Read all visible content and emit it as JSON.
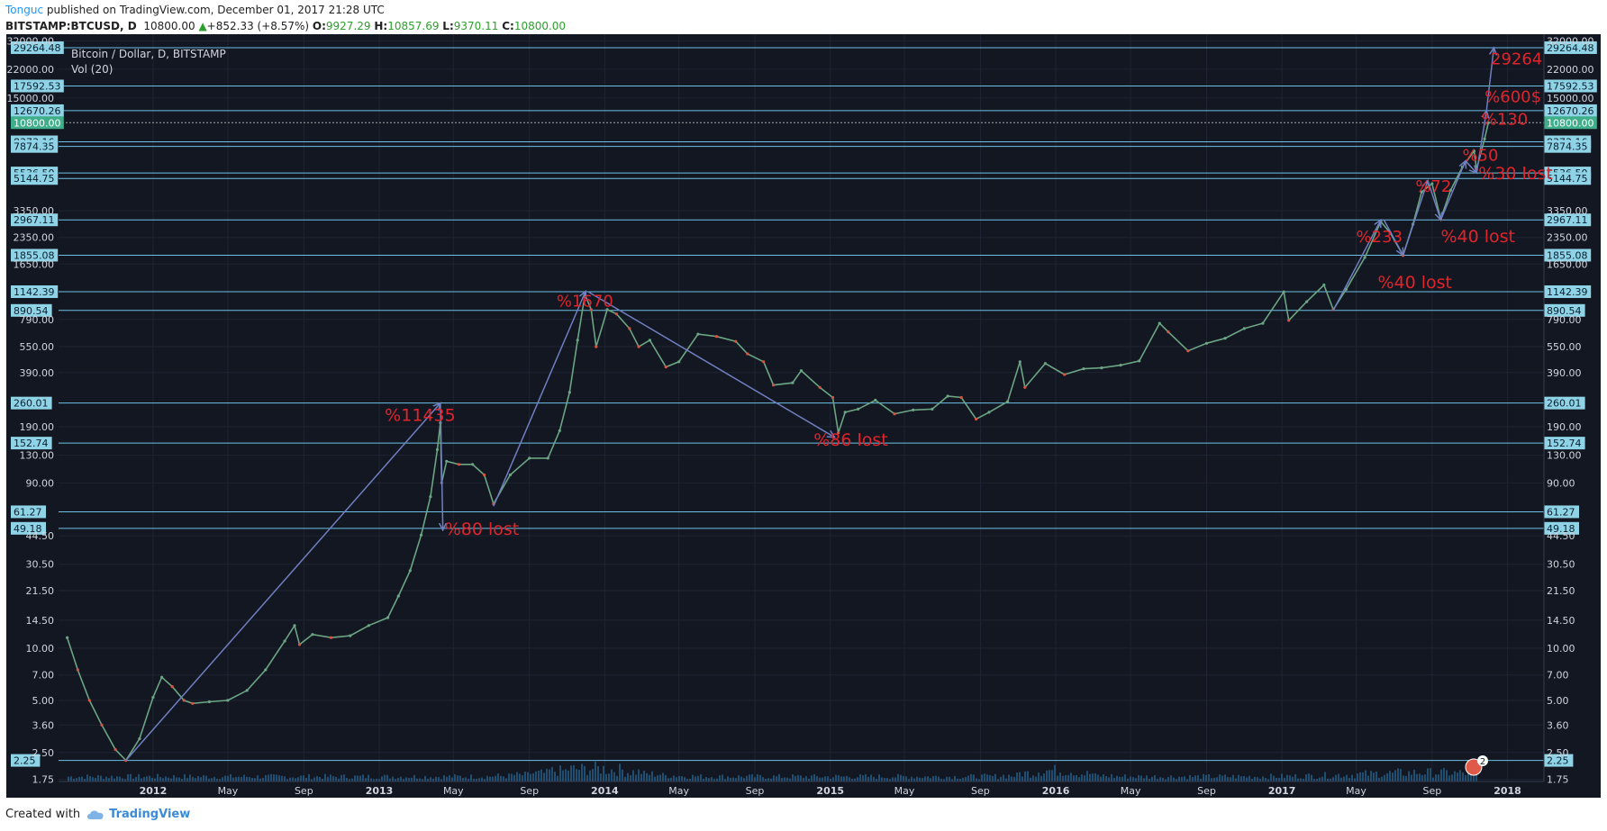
{
  "header": {
    "author": "Tonguc",
    "published": " published on TradingView.com, December 01, 2017 21:28 UTC",
    "symbol": "BITSTAMP:BTCUSD, D",
    "last": "10800.00",
    "change": "+852.33 (+8.57%)",
    "open_label": "O:",
    "open": "9927.29",
    "high_label": "H:",
    "high": "10857.69",
    "low_label": "L:",
    "low": "9370.11",
    "close_label": "C:",
    "close": "10800.00"
  },
  "footer": {
    "created_with": "Created with",
    "brand": "TradingView"
  },
  "colors": {
    "background": "#131722",
    "line": "#6ec1e4",
    "arrow": "#6f7fc0",
    "annotation": "#e0242b",
    "label_bg": "#8fd3e6",
    "price_bg": "#3fae8a",
    "candle_up": "#6ba583",
    "candle_down": "#d75442",
    "volume": "#2a7bb0"
  },
  "chart_data": {
    "type": "line",
    "title": "Bitcoin / Dollar, D, BITSTAMP",
    "subtitle": "Vol (20)",
    "y_scale": "log",
    "ylim": [
      1.7,
      35000
    ],
    "xlim": [
      "2011-08-01",
      "2018-03-01"
    ],
    "x_ticks": [
      {
        "date": "2012-01-01",
        "label": "2012"
      },
      {
        "date": "2012-05-01",
        "label": "May"
      },
      {
        "date": "2012-09-01",
        "label": "Sep"
      },
      {
        "date": "2013-01-01",
        "label": "2013"
      },
      {
        "date": "2013-05-01",
        "label": "May"
      },
      {
        "date": "2013-09-01",
        "label": "Sep"
      },
      {
        "date": "2014-01-01",
        "label": "2014"
      },
      {
        "date": "2014-05-01",
        "label": "May"
      },
      {
        "date": "2014-09-01",
        "label": "Sep"
      },
      {
        "date": "2015-01-01",
        "label": "2015"
      },
      {
        "date": "2015-05-01",
        "label": "May"
      },
      {
        "date": "2015-09-01",
        "label": "Sep"
      },
      {
        "date": "2016-01-01",
        "label": "2016"
      },
      {
        "date": "2016-05-01",
        "label": "May"
      },
      {
        "date": "2016-09-01",
        "label": "Sep"
      },
      {
        "date": "2017-01-01",
        "label": "2017"
      },
      {
        "date": "2017-05-01",
        "label": "May"
      },
      {
        "date": "2017-09-01",
        "label": "Sep"
      },
      {
        "date": "2018-01-01",
        "label": "2018"
      }
    ],
    "y_ticks": [
      "1.75",
      "2.50",
      "3.60",
      "5.00",
      "7.00",
      "10.00",
      "14.50",
      "21.50",
      "30.50",
      "44.50",
      "90.00",
      "130.00",
      "190.00",
      "390.00",
      "550.00",
      "790.00",
      "1650.00",
      "2350.00",
      "3350.00",
      "15000.00",
      "22000.00",
      "32000.00"
    ],
    "levels": [
      "29264.48",
      "17592.53",
      "12670.26",
      "8373.16",
      "7874.35",
      "5536.50",
      "5144.75",
      "2967.11",
      "1855.08",
      "1142.39",
      "890.54",
      "260.01",
      "152.74",
      "61.27",
      "49.18",
      "2.25"
    ],
    "current_price": "10800.00",
    "price_series": [
      [
        "2011-08-15",
        11.5
      ],
      [
        "2011-09-01",
        7.5
      ],
      [
        "2011-09-20",
        5.0
      ],
      [
        "2011-10-10",
        3.6
      ],
      [
        "2011-11-01",
        2.6
      ],
      [
        "2011-11-18",
        2.25
      ],
      [
        "2011-12-10",
        3.0
      ],
      [
        "2012-01-01",
        5.2
      ],
      [
        "2012-01-15",
        6.8
      ],
      [
        "2012-02-01",
        6.0
      ],
      [
        "2012-02-20",
        5.0
      ],
      [
        "2012-03-05",
        4.8
      ],
      [
        "2012-04-01",
        4.9
      ],
      [
        "2012-05-01",
        5.0
      ],
      [
        "2012-06-01",
        5.7
      ],
      [
        "2012-07-01",
        7.5
      ],
      [
        "2012-08-01",
        11.0
      ],
      [
        "2012-08-17",
        13.5
      ],
      [
        "2012-08-25",
        10.5
      ],
      [
        "2012-09-15",
        12.0
      ],
      [
        "2012-10-15",
        11.5
      ],
      [
        "2012-11-15",
        11.8
      ],
      [
        "2012-12-15",
        13.5
      ],
      [
        "2013-01-15",
        15.0
      ],
      [
        "2013-02-01",
        20.0
      ],
      [
        "2013-02-20",
        28.0
      ],
      [
        "2013-03-10",
        45.0
      ],
      [
        "2013-03-25",
        75.0
      ],
      [
        "2013-04-05",
        140.0
      ],
      [
        "2013-04-10",
        200.0
      ],
      [
        "2013-04-12",
        90.0
      ],
      [
        "2013-04-20",
        120.0
      ],
      [
        "2013-05-10",
        115.0
      ],
      [
        "2013-06-01",
        115.0
      ],
      [
        "2013-06-20",
        100.0
      ],
      [
        "2013-07-05",
        68.0
      ],
      [
        "2013-08-01",
        100.0
      ],
      [
        "2013-09-01",
        125.0
      ],
      [
        "2013-10-01",
        125.0
      ],
      [
        "2013-10-20",
        180.0
      ],
      [
        "2013-11-05",
        300.0
      ],
      [
        "2013-11-18",
        600.0
      ],
      [
        "2013-11-30",
        1100.0
      ],
      [
        "2013-12-10",
        900.0
      ],
      [
        "2013-12-18",
        550.0
      ],
      [
        "2014-01-05",
        900.0
      ],
      [
        "2014-01-20",
        850.0
      ],
      [
        "2014-02-10",
        700.0
      ],
      [
        "2014-02-25",
        550.0
      ],
      [
        "2014-03-15",
        600.0
      ],
      [
        "2014-04-10",
        420.0
      ],
      [
        "2014-05-01",
        450.0
      ],
      [
        "2014-06-01",
        650.0
      ],
      [
        "2014-07-01",
        630.0
      ],
      [
        "2014-08-01",
        590.0
      ],
      [
        "2014-08-20",
        500.0
      ],
      [
        "2014-09-15",
        450.0
      ],
      [
        "2014-10-01",
        330.0
      ],
      [
        "2014-11-01",
        340.0
      ],
      [
        "2014-11-15",
        400.0
      ],
      [
        "2014-12-15",
        320.0
      ],
      [
        "2015-01-05",
        280.0
      ],
      [
        "2015-01-14",
        175.0
      ],
      [
        "2015-01-25",
        230.0
      ],
      [
        "2015-02-15",
        240.0
      ],
      [
        "2015-03-15",
        270.0
      ],
      [
        "2015-04-15",
        225.0
      ],
      [
        "2015-05-15",
        237.0
      ],
      [
        "2015-06-15",
        240.0
      ],
      [
        "2015-07-10",
        285.0
      ],
      [
        "2015-08-01",
        280.0
      ],
      [
        "2015-08-25",
        210.0
      ],
      [
        "2015-09-15",
        230.0
      ],
      [
        "2015-10-15",
        265.0
      ],
      [
        "2015-11-04",
        450.0
      ],
      [
        "2015-11-12",
        320.0
      ],
      [
        "2015-12-15",
        440.0
      ],
      [
        "2016-01-15",
        380.0
      ],
      [
        "2016-02-15",
        410.0
      ],
      [
        "2016-03-15",
        415.0
      ],
      [
        "2016-04-15",
        430.0
      ],
      [
        "2016-05-15",
        455.0
      ],
      [
        "2016-06-17",
        750.0
      ],
      [
        "2016-07-01",
        670.0
      ],
      [
        "2016-08-02",
        520.0
      ],
      [
        "2016-09-01",
        575.0
      ],
      [
        "2016-10-01",
        615.0
      ],
      [
        "2016-11-01",
        700.0
      ],
      [
        "2016-12-01",
        750.0
      ],
      [
        "2017-01-04",
        1140.0
      ],
      [
        "2017-01-12",
        780.0
      ],
      [
        "2017-02-10",
        1000.0
      ],
      [
        "2017-03-10",
        1250.0
      ],
      [
        "2017-03-25",
        900.0
      ],
      [
        "2017-04-15",
        1180.0
      ],
      [
        "2017-05-15",
        1800.0
      ],
      [
        "2017-06-10",
        2900.0
      ],
      [
        "2017-06-25",
        2500.0
      ],
      [
        "2017-07-16",
        1850.0
      ],
      [
        "2017-08-01",
        2800.0
      ],
      [
        "2017-08-15",
        4300.0
      ],
      [
        "2017-09-01",
        4800.0
      ],
      [
        "2017-09-15",
        3000.0
      ],
      [
        "2017-10-01",
        4400.0
      ],
      [
        "2017-10-20",
        6000.0
      ],
      [
        "2017-11-08",
        7400.0
      ],
      [
        "2017-11-12",
        5800.0
      ],
      [
        "2017-11-25",
        8700.0
      ],
      [
        "2017-12-01",
        10800.0
      ]
    ],
    "arrows": [
      {
        "from": [
          "2011-11-18",
          2.25
        ],
        "to": [
          "2013-04-10",
          260
        ]
      },
      {
        "from": [
          "2013-04-10",
          260
        ],
        "to": [
          "2013-04-14",
          48
        ]
      },
      {
        "from": [
          "2013-07-05",
          66
        ],
        "to": [
          "2013-12-01",
          1150
        ]
      },
      {
        "from": [
          "2013-12-05",
          1142
        ],
        "to": [
          "2015-01-08",
          165
        ]
      },
      {
        "from": [
          "2017-03-25",
          890
        ],
        "to": [
          "2017-06-10",
          2967
        ]
      },
      {
        "from": [
          "2017-06-15",
          2967
        ],
        "to": [
          "2017-07-16",
          1855
        ]
      },
      {
        "from": [
          "2017-07-16",
          1855
        ],
        "to": [
          "2017-08-25",
          5000
        ]
      },
      {
        "from": [
          "2017-08-25",
          5000
        ],
        "to": [
          "2017-09-15",
          2967
        ]
      },
      {
        "from": [
          "2017-09-15",
          2967
        ],
        "to": [
          "2017-10-25",
          6500
        ]
      },
      {
        "from": [
          "2017-10-25",
          6500
        ],
        "to": [
          "2017-11-12",
          5536
        ]
      },
      {
        "from": [
          "2017-11-12",
          5536
        ],
        "to": [
          "2017-11-28",
          12670
        ]
      },
      {
        "from": [
          "2017-11-28",
          12670
        ],
        "to": [
          "2017-12-10",
          29264
        ]
      }
    ],
    "annotations": [
      {
        "text": "%11435",
        "date": "2013-01-10",
        "price": 205
      },
      {
        "text": "%80 lost",
        "date": "2013-04-17",
        "price": 45
      },
      {
        "text": "%1670",
        "date": "2013-10-15",
        "price": 940
      },
      {
        "text": "%86 lost",
        "date": "2014-12-05",
        "price": 148
      },
      {
        "text": "%233",
        "date": "2017-05-01",
        "price": 2200
      },
      {
        "text": "%40 lost",
        "date": "2017-06-05",
        "price": 1200
      },
      {
        "text": "%72",
        "date": "2017-08-05",
        "price": 4300
      },
      {
        "text": "%40 lost",
        "date": "2017-09-15",
        "price": 2200
      },
      {
        "text": "%50",
        "date": "2017-10-20",
        "price": 6500
      },
      {
        "text": "%30 lost",
        "date": "2017-11-15",
        "price": 5100
      },
      {
        "text": "%130",
        "date": "2017-11-20",
        "price": 10500
      },
      {
        "text": "%600$",
        "date": "2017-11-25",
        "price": 14200
      },
      {
        "text": "29264",
        "date": "2017-12-05",
        "price": 23500
      }
    ]
  }
}
